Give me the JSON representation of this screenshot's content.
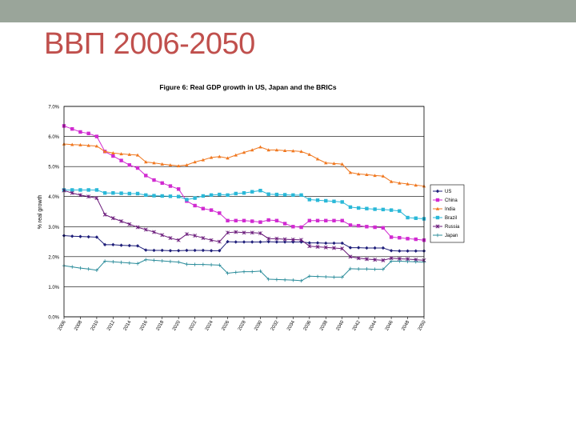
{
  "slide": {
    "title": "ВВП 2006-2050"
  },
  "chart_data": {
    "type": "line",
    "title": "Figure 6: Real GDP growth in US, Japan and the BRICs",
    "xlabel": "",
    "ylabel": "% real growth",
    "ylim": [
      0,
      7
    ],
    "yticks": [
      "0.0%",
      "1.0%",
      "2.0%",
      "3.0%",
      "4.0%",
      "5.0%",
      "6.0%",
      "7.0%"
    ],
    "xticks": [
      "2006",
      "2008",
      "2010",
      "2012",
      "2014",
      "2016",
      "2018",
      "2020",
      "2022",
      "2024",
      "2026",
      "2028",
      "2030",
      "2032",
      "2034",
      "2036",
      "2038",
      "2040",
      "2042",
      "2044",
      "2046",
      "2048",
      "2050"
    ],
    "x": [
      2006,
      2007,
      2008,
      2009,
      2010,
      2011,
      2012,
      2013,
      2014,
      2015,
      2016,
      2017,
      2018,
      2019,
      2020,
      2021,
      2022,
      2023,
      2024,
      2025,
      2026,
      2027,
      2028,
      2029,
      2030,
      2031,
      2032,
      2033,
      2034,
      2035,
      2036,
      2037,
      2038,
      2039,
      2040,
      2041,
      2042,
      2043,
      2044,
      2045,
      2046,
      2047,
      2048,
      2049,
      2050
    ],
    "grid": "horizontal",
    "legend": "right",
    "series": [
      {
        "name": "US",
        "color": "#1f1f7a",
        "marker": "diamond",
        "values": [
          2.7,
          2.68,
          2.67,
          2.66,
          2.65,
          2.4,
          2.4,
          2.38,
          2.37,
          2.36,
          2.22,
          2.21,
          2.21,
          2.2,
          2.2,
          2.21,
          2.21,
          2.21,
          2.2,
          2.2,
          2.5,
          2.49,
          2.49,
          2.49,
          2.49,
          2.5,
          2.49,
          2.49,
          2.49,
          2.49,
          2.46,
          2.46,
          2.45,
          2.45,
          2.45,
          2.3,
          2.3,
          2.29,
          2.29,
          2.29,
          2.2,
          2.19,
          2.19,
          2.19,
          2.19
        ]
      },
      {
        "name": "China",
        "color": "#d12ad1",
        "marker": "square",
        "values": [
          6.35,
          6.25,
          6.15,
          6.1,
          6.0,
          5.5,
          5.35,
          5.2,
          5.05,
          4.95,
          4.7,
          4.55,
          4.45,
          4.35,
          4.25,
          3.85,
          3.7,
          3.6,
          3.55,
          3.45,
          3.2,
          3.2,
          3.2,
          3.18,
          3.15,
          3.22,
          3.2,
          3.1,
          3.0,
          2.98,
          3.2,
          3.2,
          3.2,
          3.2,
          3.2,
          3.05,
          3.03,
          3.0,
          2.98,
          2.96,
          2.65,
          2.63,
          2.6,
          2.58,
          2.55
        ]
      },
      {
        "name": "India",
        "color": "#f07820",
        "marker": "triangle",
        "values": [
          5.75,
          5.73,
          5.72,
          5.7,
          5.68,
          5.5,
          5.45,
          5.42,
          5.4,
          5.38,
          5.15,
          5.12,
          5.08,
          5.05,
          5.02,
          5.05,
          5.15,
          5.22,
          5.3,
          5.33,
          5.28,
          5.38,
          5.47,
          5.55,
          5.65,
          5.55,
          5.55,
          5.53,
          5.52,
          5.5,
          5.4,
          5.25,
          5.12,
          5.1,
          5.08,
          4.8,
          4.75,
          4.73,
          4.7,
          4.68,
          4.5,
          4.45,
          4.42,
          4.38,
          4.35
        ]
      },
      {
        "name": "Brazil",
        "color": "#2ab8d8",
        "marker": "square",
        "values": [
          4.22,
          4.22,
          4.22,
          4.22,
          4.22,
          4.12,
          4.12,
          4.11,
          4.1,
          4.1,
          4.05,
          4.03,
          4.02,
          4.01,
          4.0,
          3.9,
          3.95,
          4.02,
          4.05,
          4.07,
          4.05,
          4.1,
          4.12,
          4.16,
          4.2,
          4.08,
          4.07,
          4.06,
          4.05,
          4.05,
          3.9,
          3.88,
          3.86,
          3.84,
          3.82,
          3.65,
          3.62,
          3.6,
          3.58,
          3.57,
          3.55,
          3.52,
          3.3,
          3.28,
          3.26
        ]
      },
      {
        "name": "Russia",
        "color": "#6a1a7a",
        "marker": "star",
        "values": [
          4.2,
          4.12,
          4.05,
          4.0,
          3.95,
          3.4,
          3.28,
          3.18,
          3.08,
          2.98,
          2.9,
          2.82,
          2.72,
          2.62,
          2.55,
          2.75,
          2.7,
          2.62,
          2.55,
          2.5,
          2.8,
          2.82,
          2.8,
          2.8,
          2.78,
          2.6,
          2.6,
          2.58,
          2.57,
          2.56,
          2.35,
          2.33,
          2.31,
          2.29,
          2.27,
          2.0,
          1.95,
          1.92,
          1.9,
          1.88,
          1.95,
          1.93,
          1.92,
          1.9,
          1.88
        ]
      },
      {
        "name": "Japan",
        "color": "#2a8c9a",
        "marker": "plus",
        "values": [
          1.7,
          1.66,
          1.62,
          1.59,
          1.55,
          1.85,
          1.83,
          1.81,
          1.79,
          1.77,
          1.9,
          1.88,
          1.86,
          1.84,
          1.82,
          1.75,
          1.74,
          1.74,
          1.73,
          1.72,
          1.45,
          1.48,
          1.5,
          1.5,
          1.52,
          1.25,
          1.24,
          1.23,
          1.22,
          1.2,
          1.35,
          1.34,
          1.33,
          1.32,
          1.32,
          1.6,
          1.59,
          1.59,
          1.58,
          1.58,
          1.85,
          1.85,
          1.84,
          1.83,
          1.82
        ]
      }
    ]
  }
}
